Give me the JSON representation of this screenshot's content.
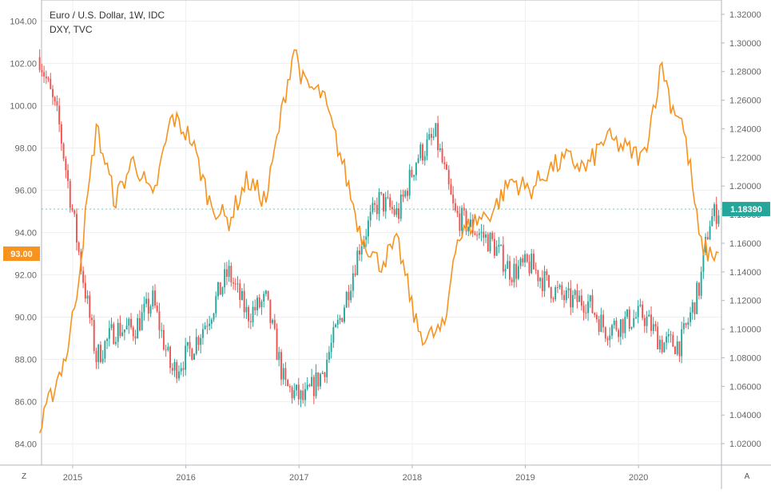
{
  "legend": {
    "main": "Euro / U.S. Dollar, 1W, IDC",
    "overlay": "DXY, TVC"
  },
  "corner": {
    "left": "Z",
    "right": "A"
  },
  "colors": {
    "up": "#26a69a",
    "down": "#ef5350",
    "dxy": "#f7931e",
    "grid": "#eef0f3",
    "axis": "#b2b5be",
    "text": "#666666"
  },
  "chart_data": {
    "type": "line",
    "x_ticks": [
      "2015",
      "2016",
      "2017",
      "2018",
      "2019",
      "2020"
    ],
    "left_axis": {
      "ticks": [
        "84.00",
        "86.00",
        "88.00",
        "90.00",
        "92.00",
        "94.00",
        "96.00",
        "98.00",
        "100.00",
        "102.00",
        "104.00"
      ],
      "range": [
        83,
        105
      ]
    },
    "right_axis": {
      "ticks": [
        "1.02000",
        "1.04000",
        "1.06000",
        "1.08000",
        "1.10000",
        "1.12000",
        "1.14000",
        "1.16000",
        "1.18000",
        "1.20000",
        "1.22000",
        "1.24000",
        "1.26000",
        "1.28000",
        "1.30000",
        "1.32000"
      ],
      "range": [
        1.005,
        1.33
      ]
    },
    "last_price_labels": {
      "eurusd": "1.18390",
      "dxy": "93.00"
    },
    "series": [
      {
        "name": "Euro / U.S. Dollar, 1W, IDC",
        "axis": "right",
        "style": "candles",
        "points": [
          [
            "2014-09",
            1.29
          ],
          [
            "2014-11",
            1.245
          ],
          [
            "2015-01",
            1.16
          ],
          [
            "2015-03",
            1.08
          ],
          [
            "2015-05",
            1.1
          ],
          [
            "2015-07",
            1.1
          ],
          [
            "2015-09",
            1.12
          ],
          [
            "2015-11",
            1.07
          ],
          [
            "2016-01",
            1.085
          ],
          [
            "2016-03",
            1.11
          ],
          [
            "2016-05",
            1.14
          ],
          [
            "2016-07",
            1.11
          ],
          [
            "2016-09",
            1.12
          ],
          [
            "2016-11",
            1.06
          ],
          [
            "2017-01",
            1.05
          ],
          [
            "2017-03",
            1.07
          ],
          [
            "2017-05",
            1.11
          ],
          [
            "2017-07",
            1.16
          ],
          [
            "2017-09",
            1.19
          ],
          [
            "2017-11",
            1.18
          ],
          [
            "2018-01",
            1.22
          ],
          [
            "2018-03",
            1.235
          ],
          [
            "2018-05",
            1.18
          ],
          [
            "2018-07",
            1.17
          ],
          [
            "2018-09",
            1.16
          ],
          [
            "2018-11",
            1.14
          ],
          [
            "2019-01",
            1.145
          ],
          [
            "2019-03",
            1.13
          ],
          [
            "2019-05",
            1.12
          ],
          [
            "2019-07",
            1.12
          ],
          [
            "2019-09",
            1.1
          ],
          [
            "2019-11",
            1.105
          ],
          [
            "2020-01",
            1.11
          ],
          [
            "2020-03",
            1.09
          ],
          [
            "2020-05",
            1.09
          ],
          [
            "2020-07",
            1.13
          ],
          [
            "2020-08",
            1.175
          ],
          [
            "2020-09",
            1.184
          ]
        ]
      },
      {
        "name": "DXY, TVC",
        "axis": "left",
        "style": "line",
        "points": [
          [
            "2014-09",
            84.5
          ],
          [
            "2014-10",
            86.0
          ],
          [
            "2014-12",
            88.5
          ],
          [
            "2015-01",
            91.5
          ],
          [
            "2015-03",
            99.0
          ],
          [
            "2015-05",
            95.5
          ],
          [
            "2015-07",
            97.5
          ],
          [
            "2015-09",
            95.5
          ],
          [
            "2015-11",
            99.5
          ],
          [
            "2016-01",
            98.5
          ],
          [
            "2016-03",
            95.5
          ],
          [
            "2016-05",
            94.5
          ],
          [
            "2016-07",
            96.5
          ],
          [
            "2016-09",
            95.5
          ],
          [
            "2016-11",
            100.5
          ],
          [
            "2016-12",
            102.8
          ],
          [
            "2017-01",
            101.0
          ],
          [
            "2017-03",
            100.5
          ],
          [
            "2017-05",
            97.5
          ],
          [
            "2017-07",
            94.0
          ],
          [
            "2017-09",
            92.5
          ],
          [
            "2017-11",
            93.5
          ],
          [
            "2018-01",
            89.5
          ],
          [
            "2018-02",
            89.0
          ],
          [
            "2018-04",
            89.5
          ],
          [
            "2018-05",
            93.5
          ],
          [
            "2018-07",
            94.5
          ],
          [
            "2018-09",
            95.0
          ],
          [
            "2018-11",
            96.5
          ],
          [
            "2019-01",
            96.0
          ],
          [
            "2019-03",
            97.0
          ],
          [
            "2019-05",
            97.5
          ],
          [
            "2019-07",
            97.0
          ],
          [
            "2019-09",
            98.5
          ],
          [
            "2019-11",
            98.0
          ],
          [
            "2020-01",
            97.5
          ],
          [
            "2020-03",
            102.0
          ],
          [
            "2020-04",
            100.0
          ],
          [
            "2020-05",
            99.5
          ],
          [
            "2020-06",
            97.0
          ],
          [
            "2020-07",
            93.5
          ],
          [
            "2020-08",
            93.0
          ],
          [
            "2020-09",
            93.0
          ]
        ]
      }
    ]
  }
}
